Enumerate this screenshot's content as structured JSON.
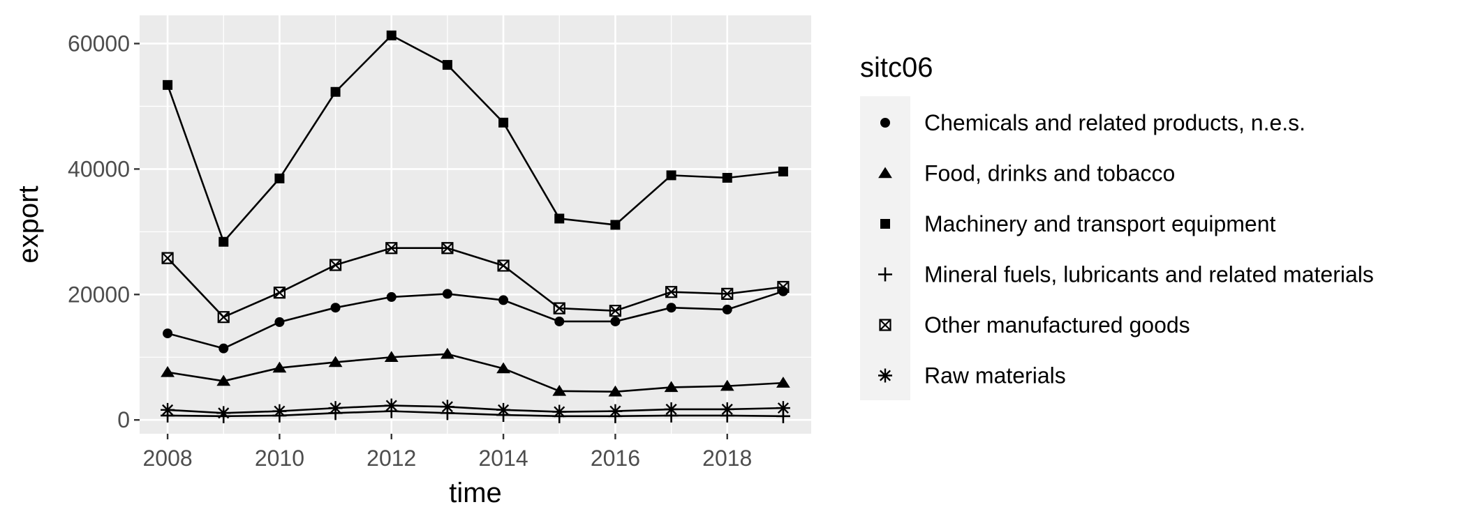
{
  "chart_data": {
    "type": "line",
    "xlabel": "time",
    "ylabel": "export",
    "xlim": [
      2007.5,
      2019.5
    ],
    "ylim": [
      -2200,
      64500
    ],
    "x_ticks": [
      2008,
      2010,
      2012,
      2014,
      2016,
      2018
    ],
    "y_ticks": [
      0,
      20000,
      40000,
      60000
    ],
    "x_tick_labels": [
      "2008",
      "2010",
      "2012",
      "2014",
      "2016",
      "2018"
    ],
    "y_tick_labels": [
      "0",
      "20000",
      "40000",
      "60000"
    ],
    "grid": true,
    "legend": {
      "title": "sitc06",
      "position": "right"
    },
    "x": [
      2008,
      2009,
      2010,
      2011,
      2012,
      2013,
      2014,
      2015,
      2016,
      2017,
      2018,
      2019
    ],
    "series": [
      {
        "name": "Chemicals and related products, n.e.s.",
        "shape": "circle",
        "values": [
          13800,
          11400,
          15600,
          17900,
          19600,
          20100,
          19100,
          15700,
          15700,
          17900,
          17600,
          20500
        ]
      },
      {
        "name": "Food, drinks and tobacco",
        "shape": "triangle",
        "values": [
          7600,
          6200,
          8300,
          9200,
          10000,
          10500,
          8200,
          4600,
          4500,
          5200,
          5400,
          5900
        ]
      },
      {
        "name": "Machinery and transport equipment",
        "shape": "square",
        "values": [
          53400,
          28400,
          38500,
          52300,
          61300,
          56600,
          47400,
          32100,
          31100,
          39000,
          38600,
          39600
        ]
      },
      {
        "name": "Mineral fuels, lubricants and related materials",
        "shape": "plus",
        "values": [
          700,
          600,
          700,
          1100,
          1400,
          1100,
          800,
          600,
          600,
          700,
          700,
          600
        ]
      },
      {
        "name": "Other manufactured goods",
        "shape": "boxcross",
        "values": [
          25800,
          16400,
          20300,
          24700,
          27400,
          27400,
          24600,
          17800,
          17400,
          20400,
          20100,
          21200
        ]
      },
      {
        "name": "Raw materials",
        "shape": "asterisk",
        "values": [
          1600,
          1100,
          1400,
          1900,
          2300,
          2100,
          1600,
          1300,
          1400,
          1700,
          1700,
          1900
        ]
      }
    ]
  }
}
